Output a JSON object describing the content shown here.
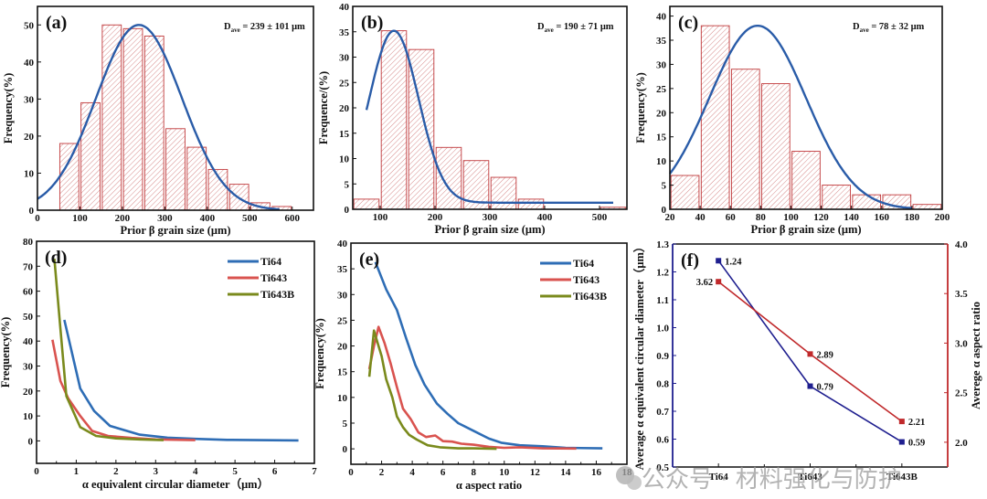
{
  "watermark": "公众号 · 材料强化与防护",
  "colors": {
    "bar_edge": "#c0393b",
    "fit_line": "#2a5ca8",
    "ti64": "#2e6db5",
    "ti643": "#d9534f",
    "ti643b": "#7a8a1c",
    "left_axis_f": "#1f1f8f",
    "right_axis_f": "#c0292b"
  },
  "chart_data": [
    {
      "id": "a",
      "panel_label": "(a)",
      "type": "bar",
      "title": "",
      "annotation": "D_ave = 239 ± 101 μm",
      "annotation_main": "D",
      "annotation_sub": "ave",
      "annotation_rest": " = 239 ± 101 μm",
      "xlabel": "Prior β grain size (μm)",
      "ylabel": "Frequency(%)",
      "xlim": [
        0,
        650
      ],
      "ylim": [
        0,
        55
      ],
      "xticks": [
        0,
        100,
        200,
        300,
        400,
        500,
        600
      ],
      "yticks": [
        0,
        10,
        20,
        30,
        40,
        50
      ],
      "bin_width": 50,
      "categories": [
        75,
        125,
        175,
        225,
        275,
        325,
        375,
        425,
        475,
        525,
        575
      ],
      "values": [
        18,
        29,
        50,
        49,
        47,
        22,
        17,
        11,
        7,
        2,
        1
      ],
      "fit": {
        "type": "gaussian",
        "mean": 239,
        "sd": 101,
        "peak": 50,
        "x_range": [
          0,
          570
        ]
      }
    },
    {
      "id": "b",
      "panel_label": "(b)",
      "type": "bar",
      "title": "",
      "annotation_main": "D",
      "annotation_sub": "ave",
      "annotation_rest": " = 190 ± 71 μm",
      "xlabel": "Prior β grain size (μm)",
      "ylabel": "Frequence/(%)",
      "xlim": [
        50,
        550
      ],
      "ylim": [
        0,
        40
      ],
      "xticks": [
        100,
        200,
        300,
        400,
        500
      ],
      "yticks": [
        0,
        5,
        10,
        15,
        20,
        25,
        30,
        35,
        40
      ],
      "bin_width": 50,
      "categories": [
        75,
        125,
        175,
        225,
        275,
        325,
        375,
        425,
        475,
        525
      ],
      "values": [
        2,
        35.2,
        31.5,
        12.2,
        9.6,
        6.3,
        2.0,
        0,
        0,
        0.4
      ],
      "fit": {
        "type": "gaussian-offset",
        "mean": 125,
        "sd": 45,
        "peak": 35.2,
        "offset": 1.3,
        "x_range": [
          75,
          525
        ]
      }
    },
    {
      "id": "c",
      "panel_label": "(c)",
      "type": "bar",
      "title": "",
      "annotation_main": "D",
      "annotation_sub": "ave",
      "annotation_rest": " = 78 ± 32 μm",
      "xlabel": "Prior β grain size (μm)",
      "ylabel": "Frequency(%)",
      "xlim": [
        20,
        200
      ],
      "ylim": [
        0,
        42
      ],
      "xticks": [
        20,
        40,
        60,
        80,
        100,
        120,
        140,
        160,
        180,
        200
      ],
      "yticks": [
        0,
        5,
        10,
        15,
        20,
        25,
        30,
        35,
        40
      ],
      "bin_width": 20,
      "categories": [
        30,
        50,
        70,
        90,
        110,
        130,
        150,
        170,
        190
      ],
      "values": [
        7,
        38,
        29,
        26,
        12,
        5,
        3,
        3,
        1
      ],
      "fit": {
        "type": "gaussian",
        "mean": 78,
        "sd": 32,
        "peak": 38,
        "x_range": [
          20,
          180
        ]
      }
    },
    {
      "id": "d",
      "panel_label": "(d)",
      "type": "line",
      "title": "",
      "xlabel": "α equivalent circular diameter（μm）",
      "ylabel": "Frequency(%)",
      "xlim": [
        0,
        7
      ],
      "ylim": [
        -9,
        80
      ],
      "xticks": [
        0,
        1,
        2,
        3,
        4,
        5,
        6,
        7
      ],
      "yticks": [
        0,
        10,
        20,
        30,
        40,
        50,
        60,
        70,
        80
      ],
      "legend": [
        "Ti64",
        "Ti643",
        "Ti643B"
      ],
      "legend_position": "top-right",
      "series": [
        {
          "name": "Ti64",
          "x": [
            0.7,
            1.1,
            1.45,
            1.85,
            2.6,
            3.3,
            4.0,
            4.8,
            5.6,
            6.6
          ],
          "y": [
            48.5,
            21,
            12,
            6,
            2.5,
            1.3,
            0.8,
            0.4,
            0.3,
            0.2
          ]
        },
        {
          "name": "Ti643",
          "x": [
            0.4,
            0.6,
            0.8,
            1.1,
            1.4,
            1.8,
            2.4,
            3.0,
            4.0
          ],
          "y": [
            40.5,
            24,
            17,
            10,
            4,
            2,
            1.2,
            0.6,
            0.3
          ]
        },
        {
          "name": "Ti643B",
          "x": [
            0.45,
            0.6,
            0.75,
            1.1,
            1.5,
            2.0,
            2.6,
            3.2
          ],
          "y": [
            73,
            45,
            18,
            5.5,
            2,
            1,
            0.6,
            0.3
          ]
        }
      ]
    },
    {
      "id": "e",
      "panel_label": "(e)",
      "type": "line",
      "title": "",
      "xlabel": "α aspect ratio",
      "ylabel": "Frequency(%)",
      "xlim": [
        0,
        18
      ],
      "ylim": [
        -3,
        40
      ],
      "xticks": [
        0,
        2,
        4,
        6,
        8,
        10,
        12,
        14,
        16,
        18
      ],
      "yticks": [
        0,
        5,
        10,
        15,
        20,
        25,
        30,
        35,
        40
      ],
      "legend": [
        "Ti64",
        "Ti643",
        "Ti643B"
      ],
      "legend_position": "top-right",
      "series": [
        {
          "name": "Ti64",
          "x": [
            1.6,
            2.3,
            3.0,
            3.6,
            4.2,
            4.8,
            5.6,
            6.3,
            7.0,
            8.0,
            9.0,
            9.8,
            11,
            12.5,
            14,
            16.4
          ],
          "y": [
            36.3,
            31,
            27,
            21.5,
            16.3,
            12.5,
            8.8,
            6.8,
            5,
            3.5,
            2,
            1.2,
            0.7,
            0.5,
            0.2,
            0.1
          ]
        },
        {
          "name": "Ti643",
          "x": [
            1.2,
            1.5,
            1.8,
            2.2,
            2.6,
            3.0,
            3.4,
            3.9,
            4.4,
            4.9,
            5.5,
            6.0,
            6.6,
            7.2,
            8.0,
            9.0,
            10,
            11,
            12.5,
            14.7
          ],
          "y": [
            15.5,
            20,
            23.7,
            20.5,
            16.5,
            12,
            7.8,
            5.8,
            3.2,
            2.3,
            2.6,
            1.5,
            1.4,
            1.0,
            0.8,
            0.4,
            0.2,
            0.3,
            0.1,
            0.05
          ]
        },
        {
          "name": "Ti643B",
          "x": [
            1.2,
            1.5,
            1.7,
            2.0,
            2.3,
            2.7,
            3.0,
            3.4,
            3.8,
            4.3,
            5.0,
            5.8,
            7.0,
            8.0,
            9.5
          ],
          "y": [
            14,
            23,
            21,
            18,
            13.5,
            10,
            6.3,
            4.2,
            2.7,
            1.8,
            0.7,
            0.3,
            0.1,
            0.1,
            0
          ]
        }
      ]
    },
    {
      "id": "f",
      "panel_label": "(f)",
      "type": "line",
      "title": "",
      "xlabel": "",
      "categories": [
        "Ti64",
        "Ti643",
        "Ti643B"
      ],
      "ylabel": "Average α equivalent circular diameter（μm）",
      "ylabel_right": "Averege α aspect ratio",
      "ylim": [
        0.5,
        1.3
      ],
      "ylim_right": [
        1.75,
        4.0
      ],
      "yticks": [
        0.5,
        0.6,
        0.7,
        0.8,
        0.9,
        1.0,
        1.1,
        1.2,
        1.3
      ],
      "yticks_right": [
        2.0,
        2.5,
        3.0,
        3.5,
        4.0
      ],
      "series": [
        {
          "name": "Average α equivalent circular diameter",
          "axis": "left",
          "values": [
            1.24,
            0.79,
            0.59
          ],
          "labels": [
            "1.24",
            "0.79",
            "0.59"
          ]
        },
        {
          "name": "Average α aspect ratio",
          "axis": "right",
          "values": [
            3.62,
            2.89,
            2.21
          ],
          "labels": [
            "3.62",
            "2.89",
            "2.21"
          ]
        }
      ]
    }
  ]
}
